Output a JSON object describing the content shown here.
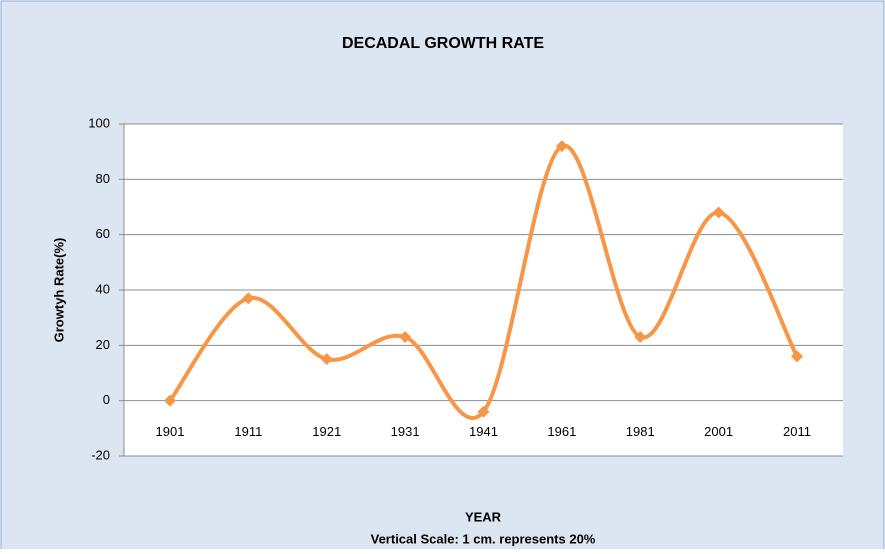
{
  "chart_data": {
    "type": "line",
    "title": "DECADAL GROWTH RATE",
    "x_label": "YEAR",
    "y_label": "Growtyh Rate(%)",
    "note": "Vertical Scale: 1 cm. represents 20%",
    "categories": [
      "1901",
      "1911",
      "1921",
      "1931",
      "1941",
      "1961",
      "1981",
      "2001",
      "2011"
    ],
    "series": [
      {
        "name": "Growth Rate",
        "color": "#f79646",
        "values": [
          0,
          37,
          15,
          23,
          -4,
          92,
          23,
          68,
          16
        ]
      }
    ],
    "ylim": [
      -20,
      100
    ],
    "yticks": [
      -20,
      0,
      20,
      40,
      60,
      80,
      100
    ],
    "grid": true,
    "smooth": true
  }
}
